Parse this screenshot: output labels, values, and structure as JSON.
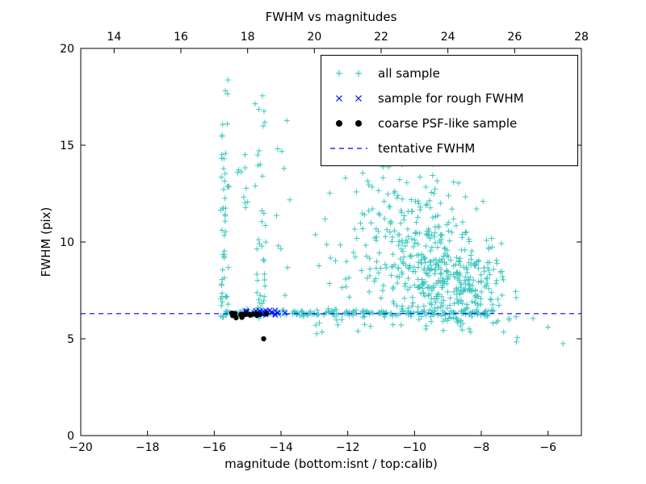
{
  "chart_data": {
    "type": "scatter",
    "title": "FWHM vs magnitudes",
    "xlabel": "magnitude (bottom:isnt / top:calib)",
    "ylabel": "FWHM (pix)",
    "xlim": [
      -20,
      -5
    ],
    "ylim": [
      0,
      20
    ],
    "x_ticks_bottom": [
      -20,
      -18,
      -16,
      -14,
      -12,
      -10,
      -8,
      -6
    ],
    "x_ticks_top": [
      14,
      16,
      18,
      20,
      22,
      24,
      26,
      28
    ],
    "top_axis_equals_bottom_plus": 33,
    "y_ticks": [
      0,
      5,
      10,
      15,
      20
    ],
    "grid": false,
    "background": "#ffffff",
    "axes_color": "#000000",
    "tentative_fwhm": 6.3,
    "seed": 1337,
    "legend": {
      "position": "upper right",
      "entries": [
        {
          "label": "all sample",
          "marker": "plus",
          "color": "#3cc7c0"
        },
        {
          "label": "sample for rough FWHM",
          "marker": "x",
          "color": "#0000ff"
        },
        {
          "label": "coarse PSF-like sample",
          "marker": "dot",
          "color": "#000000"
        },
        {
          "label": "tentative FWHM",
          "marker": "dashed-line",
          "color": "#0000ff"
        }
      ]
    },
    "series": [
      {
        "name": "all sample",
        "marker": "plus",
        "color": "#3cc7c0",
        "clusters": [
          {
            "n": 55,
            "x": [
              -15.82,
              -15.55
            ],
            "y": [
              6.1,
              19.2
            ],
            "ypow": 1.5
          },
          {
            "n": 10,
            "x": [
              -15.35,
              -14.95
            ],
            "y": [
              11.5,
              16.5
            ]
          },
          {
            "n": 38,
            "x": [
              -14.8,
              -14.45
            ],
            "y": [
              6.5,
              19.3
            ],
            "ypow": 1.3
          },
          {
            "n": 10,
            "x": [
              -14.3,
              -13.7
            ],
            "y": [
              7.0,
              16.5
            ],
            "ypow": 1.2
          },
          {
            "n": 190,
            "x": [
              -15.75,
              -7.8
            ],
            "ym": 6.32,
            "ys": 0.1
          },
          {
            "n": 320,
            "xm": -8.9,
            "xs": 0.85,
            "xclip": [
              -11.5,
              -6.85
            ],
            "ym": 7.9,
            "ys": 1.3,
            "yclip": [
              5.2,
              13.5
            ]
          },
          {
            "n": 210,
            "xm": -10.2,
            "xs": 0.95,
            "xclip": [
              -13.0,
              -7.4
            ],
            "ym": 10.3,
            "ys": 2.2,
            "yclip": [
              5.5,
              16.5
            ]
          },
          {
            "n": 18,
            "x": [
              -10.6,
              -8.8
            ],
            "y": [
              15.8,
              19.6
            ]
          },
          {
            "n": 9,
            "x": [
              -7.7,
              -6.8
            ],
            "y": [
              4.6,
              6.2
            ]
          },
          {
            "n": 8,
            "x": [
              -13.2,
              -11.2
            ],
            "y": [
              5.2,
              6.0
            ]
          },
          {
            "n": 6,
            "x": [
              -12.9,
              -11.8
            ],
            "y": [
              6.8,
              9.5
            ]
          }
        ],
        "points": [
          [
            -5.55,
            4.75
          ],
          [
            -6.45,
            6.05
          ],
          [
            -6.0,
            5.6
          ]
        ]
      },
      {
        "name": "tentative FWHM",
        "type": "hline",
        "color": "#0000ff",
        "linestyle": "dashed",
        "y": 6.3
      },
      {
        "name": "sample for rough FWHM",
        "marker": "x",
        "color": "#0000ff",
        "clusters": [
          {
            "n": 26,
            "x": [
              -15.15,
              -13.85
            ],
            "ym": 6.33,
            "ys": 0.07
          }
        ],
        "points": []
      },
      {
        "name": "coarse PSF-like sample",
        "marker": "dot",
        "color": "#000000",
        "clusters": [
          {
            "n": 22,
            "x": [
              -15.6,
              -14.4
            ],
            "ym": 6.27,
            "ys": 0.06
          }
        ],
        "points": [
          [
            -14.52,
            5.0
          ]
        ]
      }
    ]
  }
}
